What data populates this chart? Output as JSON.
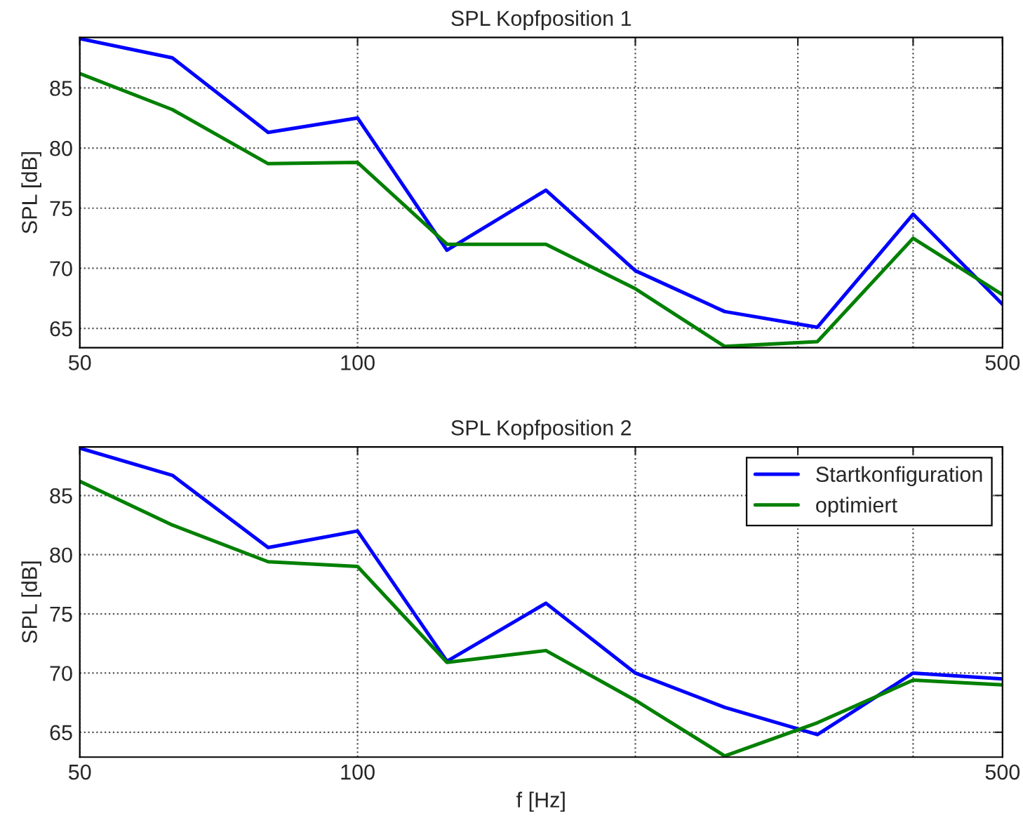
{
  "chart_data": [
    {
      "type": "line",
      "title": "SPL Kopfposition 1",
      "ylabel": "SPL [dB]",
      "log": "x",
      "grid": true,
      "legend": false,
      "x": [
        50,
        63,
        80,
        100,
        125,
        160,
        200,
        250,
        315,
        400,
        500
      ],
      "xlim": [
        50,
        500
      ],
      "xticks": [
        50,
        100,
        {
          "value": 200,
          "label": null
        },
        {
          "value": 300,
          "label": null
        },
        {
          "value": 400,
          "label": null
        },
        500
      ],
      "ylim": [
        63.4,
        89.2
      ],
      "yticks": [
        65,
        70,
        75,
        80,
        85
      ],
      "series": [
        {
          "color": "#0000ff",
          "values": [
            89.1,
            87.5,
            81.3,
            82.5,
            71.5,
            76.5,
            69.8,
            66.4,
            65.1,
            74.5,
            67.0
          ]
        },
        {
          "color": "#008000",
          "values": [
            86.2,
            83.2,
            78.7,
            78.8,
            72.0,
            72.0,
            68.3,
            63.5,
            63.9,
            72.5,
            67.8
          ]
        }
      ]
    },
    {
      "type": "line",
      "title": "SPL Kopfposition 2",
      "xlabel": "f [Hz]",
      "ylabel": "SPL [dB]",
      "log": "x",
      "grid": true,
      "legend": "top right",
      "x": [
        50,
        63,
        80,
        100,
        125,
        160,
        200,
        250,
        315,
        400,
        500
      ],
      "xlim": [
        50,
        500
      ],
      "xticks": [
        50,
        100,
        {
          "value": 200,
          "label": null
        },
        {
          "value": 300,
          "label": null
        },
        {
          "value": 400,
          "label": null
        },
        500
      ],
      "ylim": [
        62.9,
        89.1
      ],
      "yticks": [
        65,
        70,
        75,
        80,
        85
      ],
      "series": [
        {
          "name": "Startkonfiguration",
          "color": "#0000ff",
          "values": [
            89.0,
            86.7,
            80.6,
            82.0,
            71.0,
            75.9,
            70.0,
            67.1,
            64.8,
            70.0,
            69.5
          ]
        },
        {
          "name": "optimiert",
          "color": "#008000",
          "values": [
            86.2,
            82.5,
            79.4,
            79.0,
            70.9,
            71.9,
            67.7,
            63.0,
            65.8,
            69.4,
            69.0
          ]
        }
      ]
    }
  ]
}
